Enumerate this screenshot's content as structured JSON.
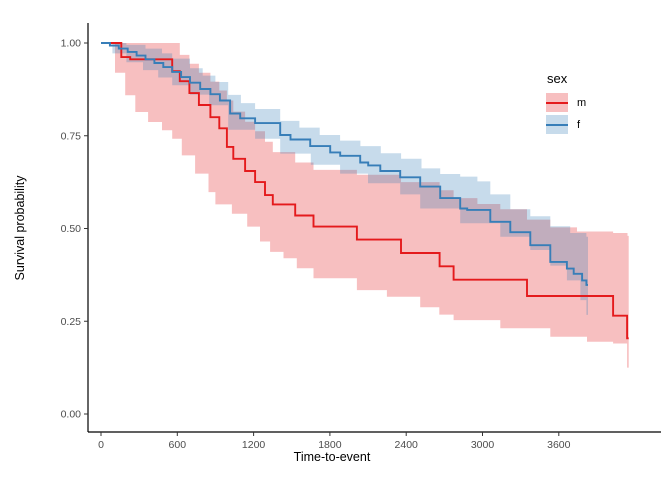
{
  "figure": {
    "background": "#FFFFFF"
  },
  "axes": {
    "x": {
      "label": "Time-to-event",
      "ticks": [
        0,
        600,
        1200,
        1800,
        2400,
        3000,
        3600
      ],
      "tick_labels": [
        "0",
        "600",
        "1200",
        "1800",
        "2400",
        "3000",
        "3600"
      ],
      "range": [
        0,
        4400
      ]
    },
    "y": {
      "label": "Survival probability",
      "ticks": [
        0,
        0.25,
        0.5,
        0.75,
        1
      ],
      "tick_labels": [
        "0.00",
        "0.25",
        "0.50",
        "0.75",
        "1.00"
      ],
      "range": [
        0,
        1
      ]
    }
  },
  "legend": {
    "title": "sex",
    "items": [
      {
        "label": "m",
        "series": "m"
      },
      {
        "label": "f",
        "series": "f"
      }
    ]
  },
  "style": {
    "axis_color": "#000000",
    "tick_color": "#333333",
    "tick_label_color": "#4D4D4D",
    "band_opacity": 0.28
  },
  "chart_data": {
    "type": "line",
    "subtype": "kaplan-meier-step",
    "title": "",
    "xlabel": "Time-to-event",
    "ylabel": "Survival probability",
    "xlim": [
      0,
      4400
    ],
    "ylim": [
      0,
      1
    ],
    "grid": "off",
    "legend_position": "inside-top-right",
    "series": [
      {
        "name": "m",
        "color": "#E41A1C",
        "t_end": 4150,
        "steps": [
          [
            0,
            1.0
          ],
          [
            160,
            0.962
          ],
          [
            230,
            0.956
          ],
          [
            560,
            0.924
          ],
          [
            620,
            0.897
          ],
          [
            695,
            0.865
          ],
          [
            770,
            0.833
          ],
          [
            860,
            0.8
          ],
          [
            930,
            0.77
          ],
          [
            990,
            0.72
          ],
          [
            1040,
            0.688
          ],
          [
            1133,
            0.655
          ],
          [
            1212,
            0.625
          ],
          [
            1290,
            0.59
          ],
          [
            1351,
            0.565
          ],
          [
            1527,
            0.535
          ],
          [
            1671,
            0.505
          ],
          [
            2012,
            0.47
          ],
          [
            2359,
            0.434
          ],
          [
            2663,
            0.398
          ],
          [
            2773,
            0.362
          ],
          [
            3350,
            0.318
          ],
          [
            4027,
            0.265
          ],
          [
            4137,
            0.204
          ]
        ],
        "ci_upper": [
          [
            0,
            1.0
          ],
          [
            620,
            0.968
          ],
          [
            695,
            0.944
          ],
          [
            770,
            0.92
          ],
          [
            860,
            0.896
          ],
          [
            930,
            0.872
          ],
          [
            990,
            0.845
          ],
          [
            1040,
            0.815
          ],
          [
            1133,
            0.788
          ],
          [
            1212,
            0.762
          ],
          [
            1290,
            0.734
          ],
          [
            1351,
            0.706
          ],
          [
            1527,
            0.678
          ],
          [
            1671,
            0.658
          ],
          [
            2012,
            0.645
          ],
          [
            2359,
            0.625
          ],
          [
            2663,
            0.603
          ],
          [
            2773,
            0.582
          ],
          [
            2960,
            0.566
          ],
          [
            3140,
            0.552
          ],
          [
            3350,
            0.524
          ],
          [
            3533,
            0.503
          ],
          [
            3743,
            0.492
          ],
          [
            4027,
            0.488
          ],
          [
            4140,
            0.48
          ]
        ],
        "ci_lower": [
          [
            0,
            1.0
          ],
          [
            110,
            0.92
          ],
          [
            190,
            0.859
          ],
          [
            270,
            0.814
          ],
          [
            370,
            0.787
          ],
          [
            480,
            0.765
          ],
          [
            560,
            0.742
          ],
          [
            635,
            0.697
          ],
          [
            740,
            0.648
          ],
          [
            845,
            0.598
          ],
          [
            900,
            0.565
          ],
          [
            1029,
            0.54
          ],
          [
            1150,
            0.505
          ],
          [
            1250,
            0.465
          ],
          [
            1330,
            0.437
          ],
          [
            1435,
            0.42
          ],
          [
            1540,
            0.393
          ],
          [
            1671,
            0.366
          ],
          [
            2012,
            0.334
          ],
          [
            2248,
            0.316
          ],
          [
            2510,
            0.288
          ],
          [
            2660,
            0.268
          ],
          [
            2773,
            0.253
          ],
          [
            3140,
            0.231
          ],
          [
            3533,
            0.208
          ],
          [
            3822,
            0.195
          ],
          [
            4027,
            0.19
          ],
          [
            4137,
            0.125
          ]
        ]
      },
      {
        "name": "f",
        "color": "#377EB8",
        "t_end": 3830,
        "steps": [
          [
            0,
            1.0
          ],
          [
            70,
            0.993
          ],
          [
            140,
            0.985
          ],
          [
            210,
            0.976
          ],
          [
            280,
            0.966
          ],
          [
            350,
            0.956
          ],
          [
            420,
            0.946
          ],
          [
            490,
            0.935
          ],
          [
            560,
            0.922
          ],
          [
            630,
            0.908
          ],
          [
            700,
            0.893
          ],
          [
            780,
            0.876
          ],
          [
            860,
            0.862
          ],
          [
            935,
            0.845
          ],
          [
            1015,
            0.81
          ],
          [
            1095,
            0.797
          ],
          [
            1212,
            0.784
          ],
          [
            1409,
            0.752
          ],
          [
            1490,
            0.74
          ],
          [
            1645,
            0.722
          ],
          [
            1802,
            0.705
          ],
          [
            1881,
            0.696
          ],
          [
            2038,
            0.678
          ],
          [
            2101,
            0.67
          ],
          [
            2196,
            0.655
          ],
          [
            2353,
            0.638
          ],
          [
            2510,
            0.613
          ],
          [
            2667,
            0.582
          ],
          [
            2825,
            0.554
          ],
          [
            2880,
            0.55
          ],
          [
            3061,
            0.518
          ],
          [
            3219,
            0.49
          ],
          [
            3376,
            0.455
          ],
          [
            3533,
            0.41
          ],
          [
            3664,
            0.392
          ],
          [
            3717,
            0.378
          ],
          [
            3783,
            0.36
          ],
          [
            3817,
            0.348
          ]
        ],
        "ci_upper": [
          [
            0,
            1.0
          ],
          [
            200,
            0.995
          ],
          [
            350,
            0.985
          ],
          [
            480,
            0.972
          ],
          [
            560,
            0.958
          ],
          [
            700,
            0.932
          ],
          [
            800,
            0.912
          ],
          [
            900,
            0.895
          ],
          [
            1000,
            0.86
          ],
          [
            1100,
            0.838
          ],
          [
            1212,
            0.822
          ],
          [
            1409,
            0.79
          ],
          [
            1560,
            0.772
          ],
          [
            1720,
            0.752
          ],
          [
            1880,
            0.737
          ],
          [
            2040,
            0.722
          ],
          [
            2200,
            0.703
          ],
          [
            2360,
            0.688
          ],
          [
            2520,
            0.662
          ],
          [
            2667,
            0.647
          ],
          [
            2825,
            0.64
          ],
          [
            2960,
            0.627
          ],
          [
            3061,
            0.592
          ],
          [
            3219,
            0.552
          ],
          [
            3376,
            0.533
          ],
          [
            3533,
            0.506
          ],
          [
            3690,
            0.488
          ],
          [
            3817,
            0.478
          ]
        ],
        "ci_lower": [
          [
            0,
            1.0
          ],
          [
            90,
            0.972
          ],
          [
            200,
            0.948
          ],
          [
            330,
            0.927
          ],
          [
            450,
            0.907
          ],
          [
            560,
            0.886
          ],
          [
            700,
            0.861
          ],
          [
            850,
            0.832
          ],
          [
            1000,
            0.766
          ],
          [
            1212,
            0.742
          ],
          [
            1409,
            0.702
          ],
          [
            1650,
            0.672
          ],
          [
            1880,
            0.648
          ],
          [
            2100,
            0.622
          ],
          [
            2353,
            0.592
          ],
          [
            2510,
            0.554
          ],
          [
            2825,
            0.514
          ],
          [
            3140,
            0.478
          ],
          [
            3376,
            0.442
          ],
          [
            3533,
            0.4
          ],
          [
            3664,
            0.36
          ],
          [
            3770,
            0.307
          ],
          [
            3817,
            0.267
          ]
        ]
      }
    ]
  }
}
